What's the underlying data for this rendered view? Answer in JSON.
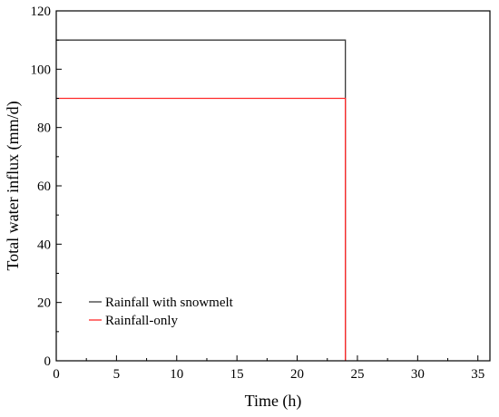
{
  "chart_data": {
    "type": "line",
    "xlabel": "Time (h)",
    "ylabel": "Total water influx (mm/d)",
    "xlim": [
      0,
      36
    ],
    "ylim": [
      0,
      120
    ],
    "xticks": [
      "0",
      "5",
      "10",
      "15",
      "20",
      "25",
      "30",
      "35"
    ],
    "yticks": [
      "0",
      "20",
      "40",
      "60",
      "80",
      "100",
      "120"
    ],
    "grid": false,
    "legend_position": "bottom-left",
    "series": [
      {
        "name": "Rainfall with snowmelt",
        "color": "#3a3a3a",
        "x": [
          0,
          24,
          24
        ],
        "y": [
          110,
          110,
          0
        ]
      },
      {
        "name": "Rainfall-only",
        "color": "#ff2a2a",
        "x": [
          0,
          24,
          24
        ],
        "y": [
          90,
          90,
          0
        ]
      }
    ]
  }
}
